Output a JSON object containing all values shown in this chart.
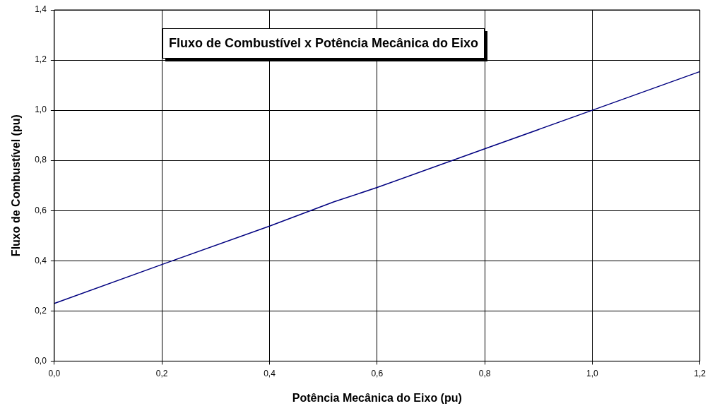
{
  "chart_data": {
    "type": "line",
    "title": "Fluxo de Combustível x Potência Mecânica do Eixo",
    "xlabel": "Potência Mecânica do Eixo (pu)",
    "ylabel": "Fluxo de Combustível (pu)",
    "x": [
      0,
      0.2,
      0.4,
      0.52,
      0.6,
      0.8,
      1.0,
      1.2
    ],
    "series": [
      {
        "color": "#000080",
        "values": [
          0.23,
          0.385,
          0.538,
          0.635,
          0.692,
          0.846,
          1.0,
          1.154
        ]
      }
    ],
    "xlim": [
      0,
      1.2
    ],
    "xticks": [
      {
        "value": 0,
        "label": "0,0"
      },
      {
        "value": 0.2,
        "label": "0,2"
      },
      {
        "value": 0.4,
        "label": "0,4"
      },
      {
        "value": 0.6,
        "label": "0,6"
      },
      {
        "value": 0.8,
        "label": "0,8"
      },
      {
        "value": 1,
        "label": "1,0"
      },
      {
        "value": 1.2,
        "label": "1,2"
      }
    ],
    "ylim": [
      0,
      1.4
    ],
    "yticks": [
      {
        "value": 0,
        "label": "0,0"
      },
      {
        "value": 0.2,
        "label": "0,2"
      },
      {
        "value": 0.4,
        "label": "0,4"
      },
      {
        "value": 0.6,
        "label": "0,6"
      },
      {
        "value": 0.8,
        "label": "0,8"
      },
      {
        "value": 1,
        "label": "1,0"
      },
      {
        "value": 1.2,
        "label": "1,2"
      },
      {
        "value": 1.4,
        "label": "1,4"
      }
    ],
    "grid": true,
    "legend": false,
    "marker": "none",
    "line_style": "solid"
  }
}
